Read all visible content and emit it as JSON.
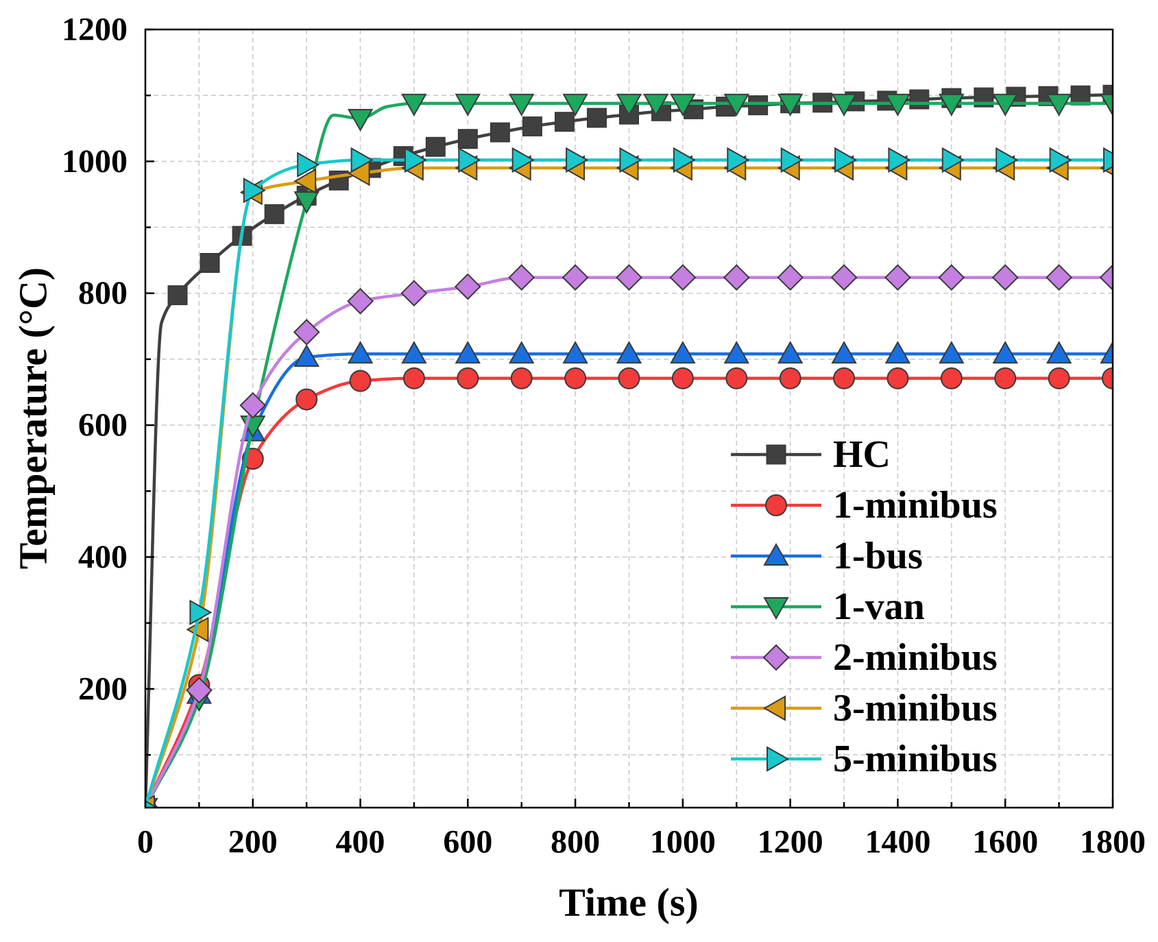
{
  "chart_data": {
    "type": "line",
    "title": "",
    "xlabel": "Time (s)",
    "ylabel": "Temperature (°C)",
    "xlim": [
      0,
      1800
    ],
    "ylim": [
      20,
      1200
    ],
    "x_ticks": [
      0,
      200,
      400,
      600,
      800,
      1000,
      1200,
      1400,
      1600,
      1800
    ],
    "y_ticks": [
      200,
      400,
      600,
      800,
      1000,
      1200
    ],
    "minor_step": 100,
    "grid": true,
    "legend_position": "bottom-right",
    "marker_edge_color": "#3A3A3A",
    "series": [
      {
        "name": "HC",
        "color": "#404040",
        "marker": "square",
        "x": [
          0,
          30,
          60,
          120,
          180,
          240,
          300,
          360,
          420,
          480,
          540,
          600,
          660,
          720,
          780,
          840,
          900,
          960,
          1020,
          1080,
          1140,
          1200,
          1260,
          1320,
          1380,
          1440,
          1500,
          1560,
          1620,
          1680,
          1740,
          1800
        ],
        "y": [
          20,
          755,
          797,
          846,
          887,
          920,
          948,
          971,
          990,
          1008,
          1022,
          1034,
          1044,
          1053,
          1060,
          1066,
          1071,
          1076,
          1079,
          1083,
          1085,
          1088,
          1089,
          1091,
          1092,
          1094,
          1096,
          1097,
          1098,
          1099,
          1100,
          1101
        ],
        "no_marker_x": [
          30
        ]
      },
      {
        "name": "1-minibus",
        "color": "#F23B3B",
        "marker": "circle",
        "x": [
          0,
          100,
          200,
          300,
          400,
          500,
          600,
          700,
          800,
          900,
          1000,
          1100,
          1200,
          1300,
          1400,
          1500,
          1600,
          1700,
          1800
        ],
        "y": [
          20,
          206,
          549,
          639,
          667,
          671,
          671,
          671,
          671,
          671,
          671,
          671,
          671,
          671,
          671,
          671,
          671,
          671,
          671
        ],
        "no_marker_x": []
      },
      {
        "name": "1-bus",
        "color": "#1A6FE0",
        "marker": "triangle-up",
        "x": [
          0,
          100,
          200,
          300,
          400,
          500,
          600,
          700,
          800,
          900,
          1000,
          1100,
          1200,
          1300,
          1400,
          1500,
          1600,
          1700,
          1800
        ],
        "y": [
          20,
          192,
          590,
          703,
          708,
          708,
          708,
          708,
          708,
          708,
          708,
          708,
          708,
          708,
          708,
          708,
          708,
          708,
          708
        ],
        "no_marker_x": []
      },
      {
        "name": "1-van",
        "color": "#1DA85E",
        "marker": "triangle-down",
        "x": [
          0,
          100,
          200,
          300,
          350,
          400,
          450,
          500,
          600,
          700,
          800,
          900,
          950,
          1000,
          1100,
          1200,
          1300,
          1400,
          1500,
          1600,
          1700,
          1800
        ],
        "y": [
          20,
          185,
          600,
          940,
          1070,
          1065,
          1083,
          1088,
          1088,
          1088,
          1088,
          1088,
          1088,
          1088,
          1088,
          1088,
          1088,
          1088,
          1088,
          1088,
          1088,
          1088
        ],
        "no_marker_x": [
          350,
          450
        ]
      },
      {
        "name": "2-minibus",
        "color": "#C47FE0",
        "marker": "diamond",
        "x": [
          0,
          100,
          200,
          300,
          400,
          500,
          600,
          700,
          800,
          900,
          1000,
          1100,
          1200,
          1300,
          1400,
          1500,
          1600,
          1700,
          1800
        ],
        "y": [
          20,
          198,
          630,
          741,
          788,
          800,
          810,
          824,
          824,
          824,
          824,
          824,
          824,
          824,
          824,
          824,
          824,
          824,
          824
        ],
        "no_marker_x": []
      },
      {
        "name": "3-minibus",
        "color": "#DC9B14",
        "marker": "triangle-left",
        "x": [
          0,
          100,
          200,
          300,
          400,
          500,
          600,
          700,
          800,
          900,
          1000,
          1100,
          1200,
          1300,
          1400,
          1500,
          1600,
          1700,
          1800
        ],
        "y": [
          20,
          290,
          953,
          970,
          982,
          990,
          990,
          990,
          990,
          990,
          990,
          990,
          990,
          990,
          990,
          990,
          990,
          990,
          990
        ],
        "no_marker_x": []
      },
      {
        "name": "5-minibus",
        "color": "#19C8CC",
        "marker": "triangle-right",
        "x": [
          0,
          100,
          200,
          300,
          400,
          500,
          600,
          700,
          800,
          900,
          1000,
          1100,
          1200,
          1300,
          1400,
          1500,
          1600,
          1700,
          1800
        ],
        "y": [
          20,
          316,
          956,
          995,
          1002,
          1002,
          1002,
          1002,
          1002,
          1002,
          1002,
          1002,
          1002,
          1002,
          1002,
          1002,
          1002,
          1002,
          1002
        ],
        "no_marker_x": []
      }
    ]
  }
}
